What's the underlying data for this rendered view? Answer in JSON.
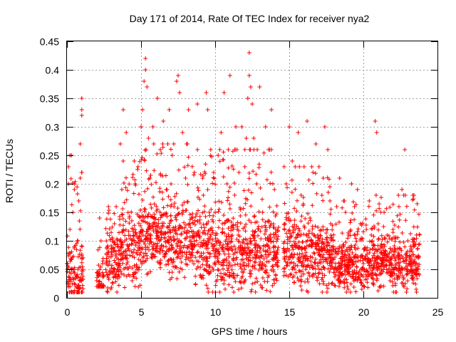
{
  "chart_data": {
    "type": "scatter",
    "title": "Day 171 of 2014, Rate Of TEC Index for receiver nya2",
    "xlabel": "GPS time / hours",
    "ylabel": "ROTI / TECUs",
    "xlim": [
      0,
      25
    ],
    "ylim": [
      0,
      0.45
    ],
    "x_ticks": [
      "0",
      "5",
      "10",
      "15",
      "20",
      "25"
    ],
    "y_ticks": [
      "0",
      "0.05",
      "0.1",
      "0.15",
      "0.2",
      "0.25",
      "0.3",
      "0.35",
      "0.4",
      "0.45"
    ],
    "grid": true,
    "marker": "+",
    "series": [
      {
        "color": "#ff0000",
        "points": [
          [
            0.0,
            0.06
          ],
          [
            0.1,
            0.2
          ],
          [
            0.1,
            0.02
          ],
          [
            0.1,
            0.23
          ],
          [
            0.2,
            0.25
          ],
          [
            0.2,
            0.12
          ],
          [
            0.3,
            0.05
          ],
          [
            0.3,
            0.25
          ],
          [
            0.4,
            0.15
          ],
          [
            0.5,
            0.09
          ],
          [
            0.5,
            0.19
          ],
          [
            0.6,
            0.04
          ],
          [
            0.7,
            0.1
          ],
          [
            0.8,
            0.17
          ],
          [
            0.9,
            0.27
          ],
          [
            0.9,
            0.21
          ],
          [
            1.0,
            0.33
          ],
          [
            1.0,
            0.35
          ],
          [
            1.0,
            0.32
          ],
          [
            1.0,
            0.07
          ],
          [
            2.1,
            0.04
          ],
          [
            2.2,
            0.14
          ],
          [
            2.3,
            0.1
          ],
          [
            2.4,
            0.06
          ],
          [
            2.8,
            0.16
          ],
          [
            3.0,
            0.08
          ],
          [
            3.2,
            0.13
          ],
          [
            3.4,
            0.05
          ],
          [
            3.6,
            0.27
          ],
          [
            3.7,
            0.19
          ],
          [
            3.8,
            0.33
          ],
          [
            3.9,
            0.1
          ],
          [
            4.0,
            0.29
          ],
          [
            4.2,
            0.14
          ],
          [
            4.4,
            0.03
          ],
          [
            4.6,
            0.2
          ],
          [
            4.8,
            0.23
          ],
          [
            5.0,
            0.3
          ],
          [
            5.1,
            0.33
          ],
          [
            5.2,
            0.38
          ],
          [
            5.3,
            0.42
          ],
          [
            5.3,
            0.4
          ],
          [
            5.4,
            0.37
          ],
          [
            5.5,
            0.28
          ],
          [
            5.6,
            0.21
          ],
          [
            5.8,
            0.3
          ],
          [
            6.0,
            0.12
          ],
          [
            6.1,
            0.35
          ],
          [
            6.3,
            0.26
          ],
          [
            6.5,
            0.31
          ],
          [
            6.7,
            0.19
          ],
          [
            6.9,
            0.33
          ],
          [
            7.1,
            0.25
          ],
          [
            7.3,
            0.08
          ],
          [
            7.4,
            0.38
          ],
          [
            7.5,
            0.39
          ],
          [
            7.6,
            0.36
          ],
          [
            7.8,
            0.29
          ],
          [
            8.0,
            0.21
          ],
          [
            8.2,
            0.33
          ],
          [
            8.4,
            0.14
          ],
          [
            8.6,
            0.22
          ],
          [
            8.8,
            0.34
          ],
          [
            9.0,
            0.04
          ],
          [
            9.2,
            0.18
          ],
          [
            9.4,
            0.36
          ],
          [
            9.5,
            0.33
          ],
          [
            9.7,
            0.26
          ],
          [
            9.9,
            0.22
          ],
          [
            10.0,
            0.15
          ],
          [
            10.2,
            0.25
          ],
          [
            10.4,
            0.29
          ],
          [
            10.6,
            0.36
          ],
          [
            10.8,
            0.2
          ],
          [
            11.0,
            0.39
          ],
          [
            11.2,
            0.12
          ],
          [
            11.4,
            0.3
          ],
          [
            11.6,
            0.22
          ],
          [
            11.8,
            0.3
          ],
          [
            12.0,
            0.23
          ],
          [
            12.1,
            0.28
          ],
          [
            12.2,
            0.35
          ],
          [
            12.3,
            0.43
          ],
          [
            12.3,
            0.39
          ],
          [
            12.4,
            0.37
          ],
          [
            12.5,
            0.34
          ],
          [
            12.6,
            0.28
          ],
          [
            12.8,
            0.2
          ],
          [
            13.0,
            0.37
          ],
          [
            13.2,
            0.15
          ],
          [
            13.4,
            0.3
          ],
          [
            13.6,
            0.26
          ],
          [
            13.8,
            0.33
          ],
          [
            14.0,
            0.19
          ],
          [
            14.2,
            0.08
          ],
          [
            14.8,
            0.2
          ],
          [
            15.0,
            0.3
          ],
          [
            15.2,
            0.24
          ],
          [
            15.4,
            0.12
          ],
          [
            15.6,
            0.29
          ],
          [
            15.8,
            0.18
          ],
          [
            16.0,
            0.23
          ],
          [
            16.2,
            0.31
          ],
          [
            16.4,
            0.14
          ],
          [
            16.6,
            0.22
          ],
          [
            16.8,
            0.27
          ],
          [
            17.0,
            0.09
          ],
          [
            17.2,
            0.18
          ],
          [
            17.4,
            0.3
          ],
          [
            17.6,
            0.26
          ],
          [
            17.8,
            0.13
          ],
          [
            18.0,
            0.05
          ],
          [
            18.2,
            0.16
          ],
          [
            18.4,
            0.21
          ],
          [
            18.6,
            0.08
          ],
          [
            18.8,
            0.15
          ],
          [
            19.0,
            0.11
          ],
          [
            19.2,
            0.2
          ],
          [
            19.4,
            0.16
          ],
          [
            19.6,
            0.19
          ],
          [
            19.8,
            0.13
          ],
          [
            20.0,
            0.06
          ],
          [
            20.2,
            0.12
          ],
          [
            20.4,
            0.17
          ],
          [
            20.6,
            0.1
          ],
          [
            20.8,
            0.31
          ],
          [
            20.9,
            0.29
          ],
          [
            21.0,
            0.13
          ],
          [
            21.2,
            0.08
          ],
          [
            21.4,
            0.15
          ],
          [
            21.6,
            0.11
          ],
          [
            21.8,
            0.03
          ],
          [
            22.0,
            0.12
          ],
          [
            22.2,
            0.07
          ],
          [
            22.4,
            0.16
          ],
          [
            22.6,
            0.19
          ],
          [
            22.8,
            0.26
          ],
          [
            23.0,
            0.1
          ],
          [
            23.2,
            0.05
          ],
          [
            23.4,
            0.09
          ],
          [
            23.6,
            0.04
          ],
          [
            23.7,
            0.07
          ]
        ]
      }
    ],
    "dense_band": {
      "color": "#ff0000",
      "segments": [
        [
          0.0,
          1.1,
          0.01,
          0.22,
          0.035,
          0.1
        ],
        [
          2.0,
          2.5,
          0.02,
          0.1,
          0.025,
          0.05
        ],
        [
          2.6,
          3.5,
          0.01,
          0.16,
          0.06,
          0.08
        ],
        [
          3.5,
          5.0,
          0.01,
          0.24,
          0.09,
          0.1
        ],
        [
          5.0,
          9.0,
          0.01,
          0.27,
          0.1,
          0.09
        ],
        [
          9.0,
          14.3,
          0.01,
          0.26,
          0.08,
          0.1
        ],
        [
          14.6,
          18.0,
          0.01,
          0.23,
          0.08,
          0.09
        ],
        [
          18.0,
          20.5,
          0.01,
          0.17,
          0.055,
          0.06
        ],
        [
          20.5,
          23.8,
          0.01,
          0.18,
          0.06,
          0.07
        ]
      ],
      "count": 2600
    }
  }
}
